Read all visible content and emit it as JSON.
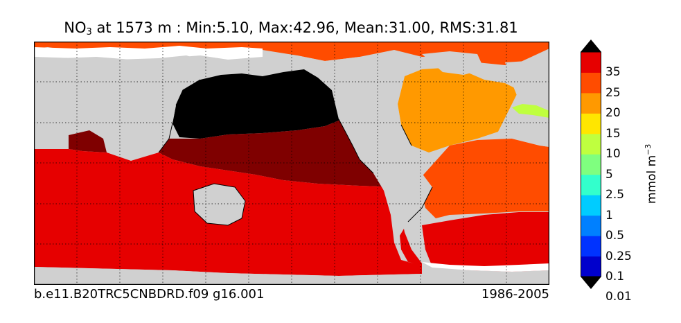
{
  "title": {
    "variable": "NO",
    "variable_sub": "3",
    "rest": " at 1573 m : Min:5.10, Max:42.96, Mean:31.00, RMS:31.81"
  },
  "footer": {
    "case_name": "b.e11.B20TRC5CNBDRD.f09 g16.001",
    "period": "1986-2005"
  },
  "colorbar": {
    "unit_base": "mmol m",
    "unit_exp": "−3",
    "ticks": [
      "35",
      "25",
      "20",
      "15",
      "10",
      "5",
      "2.5",
      "1",
      "0.5",
      "0.25",
      "0.1",
      "0.01"
    ],
    "colors": [
      "#00007f",
      "#0000cc",
      "#0033ff",
      "#0080ff",
      "#00ccff",
      "#33ffcc",
      "#7fff7f",
      "#bfff3f",
      "#ffe600",
      "#ff9900",
      "#ff4c00",
      "#e60000",
      "#7f0000"
    ],
    "extend": "both"
  },
  "map": {
    "land_color": "#d0d0d0",
    "missing_color": "#ffffff",
    "region_colors": {
      "north_pacific_deep": "#000000",
      "equatorial_pacific": "#7f0000",
      "southern_indian_pacific": "#e60000",
      "north_atlantic": "#ff9900",
      "south_atlantic": "#ff4c00",
      "arctic": "#ff4c00",
      "mediterranean": "#bfff3f"
    },
    "gridlines": "dotted",
    "projection": "cylindrical"
  }
}
